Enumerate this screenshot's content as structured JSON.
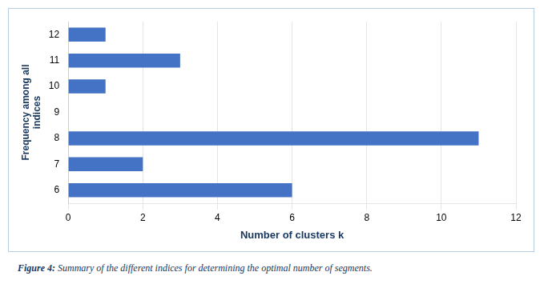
{
  "chart_data": {
    "type": "bar",
    "orientation": "horizontal",
    "categories": [
      6,
      7,
      8,
      9,
      10,
      11,
      12
    ],
    "values": [
      6,
      2,
      11,
      0,
      1,
      3,
      1
    ],
    "color": "#4472C4",
    "xlabel": "Number of clusters k",
    "ylabel": "Frequency among all\nindices",
    "xlim": [
      0,
      12
    ],
    "xticks": [
      0,
      2,
      4,
      6,
      8,
      10,
      12
    ],
    "grid": true,
    "annotations": [
      "Figure 4:",
      "Summary of the different indices for determining the optimal number of segments."
    ]
  }
}
